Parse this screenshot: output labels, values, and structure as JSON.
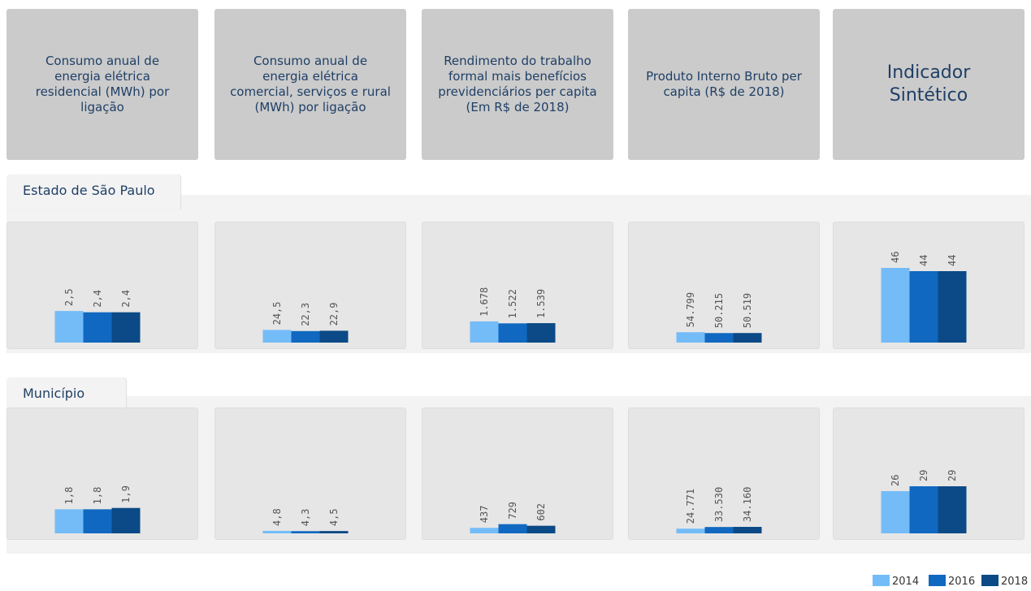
{
  "headers": [
    "Consumo anual de energia elétrica residencial (MWh) por ligação",
    "Consumo anual de energia elétrica comercial, serviços e rural (MWh) por ligação",
    "Rendimento do trabalho formal mais benefícios previdenciários per capita (Em R$ de 2018)",
    "Produto Interno Bruto per capita (R$ de 2018)",
    "Indicador Sintético"
  ],
  "sections": [
    "Estado de São Paulo",
    "Município"
  ],
  "legend": {
    "labels": [
      "2014",
      "2016",
      "2018"
    ],
    "colors": [
      "#74bcf8",
      "#1068c0",
      "#0b4a86"
    ]
  },
  "chart_data": [
    {
      "type": "bar",
      "values": [
        2.5,
        2.4,
        2.4
      ],
      "value_labels": [
        "2,5",
        "2,4",
        "2,4"
      ],
      "ylim": [
        0,
        9
      ]
    },
    {
      "type": "bar",
      "values": [
        24.5,
        22.3,
        22.9
      ],
      "value_labels": [
        "24,5",
        "22,3",
        "22,9"
      ],
      "ylim": [
        0,
        220
      ]
    },
    {
      "type": "bar",
      "values": [
        1678,
        1522,
        1539
      ],
      "value_labels": [
        "1.678",
        "1.522",
        "1.539"
      ],
      "ylim": [
        0,
        9000
      ]
    },
    {
      "type": "bar",
      "values": [
        54799,
        50215,
        50519
      ],
      "value_labels": [
        "54.799",
        "50.215",
        "50.519"
      ],
      "ylim": [
        0,
        600000
      ]
    },
    {
      "type": "bar",
      "values": [
        46,
        44,
        44
      ],
      "ylim": [
        0,
        70
      ]
    },
    {
      "type": "bar",
      "values": [
        1.8,
        1.8,
        1.9
      ],
      "value_labels": [
        "1,8",
        "1,8",
        "1,9"
      ],
      "ylim": [
        0,
        8.5
      ]
    },
    {
      "type": "bar",
      "values": [
        4.8,
        4.3,
        4.5
      ],
      "value_labels": [
        "4,8",
        "4,3",
        "4,5"
      ],
      "ylim": [
        0,
        220
      ]
    },
    {
      "type": "bar",
      "values": [
        437,
        729,
        602
      ],
      "ylim": [
        0,
        9000
      ]
    },
    {
      "type": "bar",
      "values": [
        24771,
        33530,
        34160
      ],
      "value_labels": [
        "24.771",
        "33.530",
        "34.160"
      ],
      "ylim": [
        0,
        600000
      ]
    },
    {
      "type": "bar",
      "values": [
        26,
        29,
        29
      ],
      "ylim": [
        0,
        70
      ]
    }
  ]
}
